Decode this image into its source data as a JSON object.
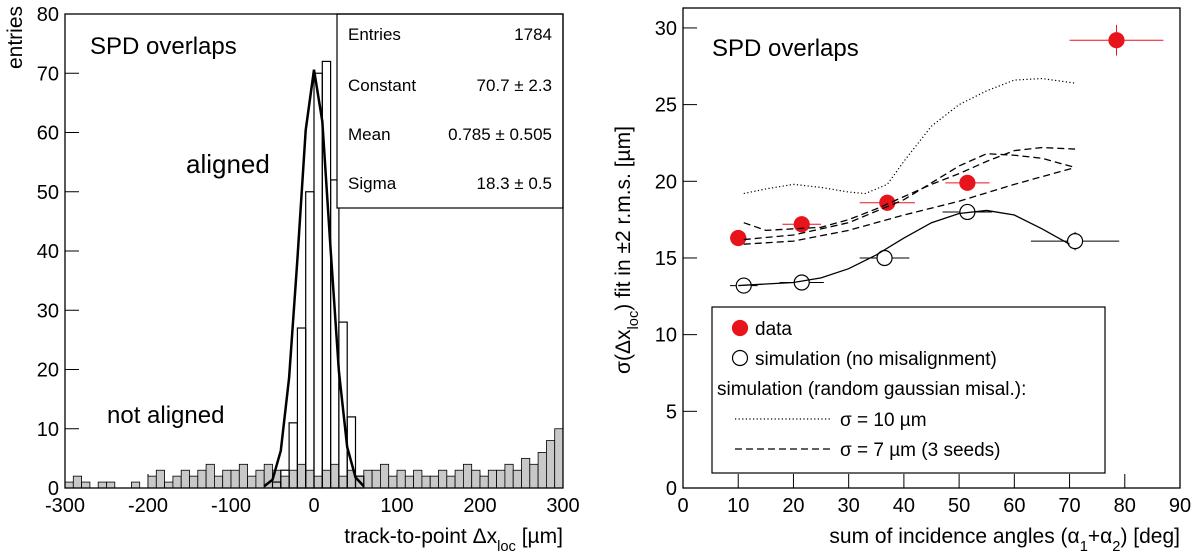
{
  "chart_data": [
    {
      "type": "histogram",
      "title": "SPD overlaps",
      "xlabel": [
        "track-to-point Δx",
        "loc",
        " [µm]"
      ],
      "ylabel": "entries",
      "xlim": [
        -300,
        300
      ],
      "ylim": [
        0,
        80
      ],
      "xticks": [
        -300,
        -200,
        -100,
        0,
        100,
        200,
        300
      ],
      "yticks": [
        0,
        10,
        20,
        30,
        40,
        50,
        60,
        70,
        80
      ],
      "bins": [
        -300,
        -290,
        -280,
        -270,
        -260,
        -250,
        -240,
        -230,
        -220,
        -210,
        -200,
        -190,
        -180,
        -170,
        -160,
        -150,
        -140,
        -130,
        -120,
        -110,
        -100,
        -90,
        -80,
        -70,
        -60,
        -50,
        -40,
        -30,
        -20,
        -10,
        0,
        10,
        20,
        30,
        40,
        50,
        60,
        70,
        80,
        90,
        100,
        110,
        120,
        130,
        140,
        150,
        160,
        170,
        180,
        190,
        200,
        210,
        220,
        230,
        240,
        250,
        260,
        270,
        280,
        290,
        300
      ],
      "series": [
        {
          "name": "aligned",
          "color": "#000000",
          "values": [
            0,
            0,
            0,
            0,
            0,
            0,
            0,
            0,
            0,
            0,
            0,
            0,
            0,
            0,
            0,
            0,
            0,
            0,
            0,
            0,
            0,
            0,
            0,
            0,
            0,
            1,
            3,
            11,
            27,
            50,
            70,
            72,
            52,
            28,
            12,
            2,
            0,
            0,
            0,
            0,
            0,
            0,
            0,
            0,
            0,
            0,
            0,
            0,
            0,
            0,
            0,
            0,
            0,
            0,
            0,
            0,
            0,
            0,
            0,
            0
          ]
        },
        {
          "name": "not aligned",
          "color": "#c8c8c8",
          "values": [
            1,
            2,
            1,
            0,
            1,
            1,
            0,
            0,
            1,
            0,
            2,
            3,
            1,
            2,
            3,
            2,
            3,
            4,
            2,
            3,
            3,
            4,
            2,
            3,
            4,
            3,
            2,
            3,
            4,
            3,
            2,
            3,
            4,
            2,
            3,
            2,
            3,
            3,
            4,
            2,
            3,
            2,
            3,
            2,
            2,
            3,
            2,
            3,
            4,
            3,
            2,
            3,
            3,
            4,
            3,
            5,
            4,
            6,
            8,
            10
          ]
        }
      ],
      "fit": {
        "x": [
          -60,
          -50,
          -40,
          -30,
          -20,
          -10,
          0,
          10,
          20,
          30,
          40,
          50,
          60
        ],
        "values": [
          0.3,
          1.4,
          6.3,
          18.6,
          38.6,
          60.4,
          70.6,
          61.9,
          40.3,
          19.7,
          6.9,
          1.8,
          0.3
        ]
      },
      "stats": [
        {
          "label": "Entries",
          "value": 1784
        },
        {
          "label": "Constant",
          "value": "70.7 ± 2.3"
        },
        {
          "label": "Mean",
          "value": "0.785 ± 0.505"
        },
        {
          "label": "Sigma",
          "value": "18.3 ± 0.5"
        }
      ]
    },
    {
      "type": "scatter",
      "title": "SPD overlaps",
      "xlabel": [
        "sum of incidence angles (α",
        "1",
        "+α",
        "2",
        ")  [deg]"
      ],
      "ylabel": [
        "σ(Δx",
        "loc",
        ") fit in ±2 r.m.s. [µm]"
      ],
      "xlim": [
        0,
        90
      ],
      "ylim": [
        0,
        31.3
      ],
      "xticks": [
        0,
        10,
        20,
        30,
        40,
        50,
        60,
        70,
        80,
        90
      ],
      "yticks": [
        0,
        5,
        10,
        15,
        20,
        25,
        30
      ],
      "legend_note": "simulation (random gaussian misal.):",
      "series": [
        {
          "name": "data",
          "style": "filled",
          "color": "#e8141c",
          "x": [
            10,
            21.5,
            37,
            51.5,
            78.5
          ],
          "values": [
            16.3,
            17.2,
            18.6,
            19.9,
            29.2
          ],
          "xerr": [
            1.5,
            3.5,
            5,
            4,
            8.5
          ],
          "yerr": [
            0.3,
            0.3,
            0.3,
            0.4,
            1.0
          ]
        },
        {
          "name": "simulation (no misalignment)",
          "style": "open",
          "color": "#000000",
          "x": [
            11,
            21.5,
            36.5,
            51.5,
            71
          ],
          "values": [
            13.2,
            13.4,
            15.0,
            18.0,
            16.1
          ],
          "xerr": [
            2.5,
            4,
            4.5,
            4.5,
            8
          ],
          "yerr": [
            0.2,
            0.2,
            0.3,
            0.5,
            0.6
          ]
        },
        {
          "style": "solid",
          "color": "#000000",
          "x": [
            10,
            15,
            20,
            25,
            30,
            35,
            40,
            45,
            50,
            55,
            60,
            65,
            70
          ],
          "values": [
            13.2,
            13.3,
            13.4,
            13.7,
            14.3,
            15.2,
            16.3,
            17.3,
            17.9,
            18.1,
            17.8,
            16.9,
            15.9
          ]
        },
        {
          "name": "σ = 10 µm",
          "style": "dotted",
          "color": "#000000",
          "x": [
            11,
            15,
            20,
            25,
            30,
            33,
            37,
            40,
            45,
            50,
            55,
            60,
            65,
            71
          ],
          "values": [
            19.2,
            19.5,
            19.8,
            19.6,
            19.3,
            19.2,
            19.8,
            21.3,
            23.6,
            25.0,
            25.9,
            26.6,
            26.7,
            26.4
          ]
        },
        {
          "name": "σ = 7 µm (3 seeds)",
          "style": "dashed",
          "color": "#000000",
          "x": [
            11,
            15,
            20,
            25,
            30,
            35,
            40,
            45,
            50,
            55,
            60,
            65,
            71
          ],
          "values": [
            17.3,
            16.8,
            16.9,
            17.0,
            17.5,
            18.2,
            19.0,
            19.8,
            20.5,
            21.3,
            22.0,
            22.2,
            22.1
          ]
        },
        {
          "style": "dashed",
          "color": "#000000",
          "x": [
            11,
            20,
            30,
            40,
            45,
            50,
            55,
            60,
            65,
            71
          ],
          "values": [
            16.2,
            16.5,
            17.3,
            18.8,
            19.9,
            21.0,
            21.8,
            21.7,
            21.5,
            20.9
          ]
        },
        {
          "style": "dashed",
          "color": "#000000",
          "x": [
            11,
            20,
            30,
            40,
            50,
            60,
            71
          ],
          "values": [
            15.9,
            16.1,
            16.8,
            17.8,
            18.7,
            19.8,
            20.9
          ]
        }
      ]
    }
  ]
}
